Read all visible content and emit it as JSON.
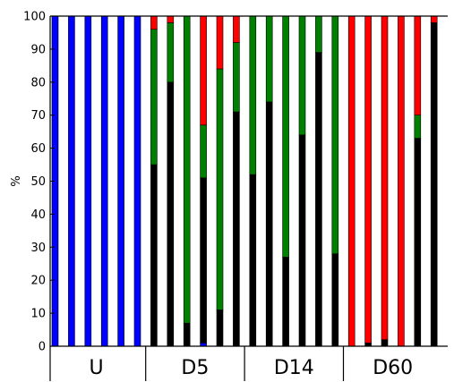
{
  "chart_data": {
    "type": "bar",
    "stacked": true,
    "ylabel": "%",
    "ylim": [
      0,
      100
    ],
    "yticks": [
      0,
      10,
      20,
      30,
      40,
      50,
      60,
      70,
      80,
      90,
      100
    ],
    "grid": false,
    "groups": [
      {
        "label": "U",
        "bar_count": 6
      },
      {
        "label": "D5",
        "bar_count": 6
      },
      {
        "label": "D14",
        "bar_count": 6
      },
      {
        "label": "D60",
        "bar_count": 6
      }
    ],
    "series": [
      {
        "color": "#0000ff",
        "values": [
          100,
          100,
          100,
          100,
          100,
          100,
          0,
          0,
          0,
          1,
          0,
          0,
          0,
          0,
          0,
          0,
          0,
          0,
          0,
          0,
          0,
          0,
          0,
          0
        ]
      },
      {
        "color": "#000000",
        "values": [
          0,
          0,
          0,
          0,
          0,
          0,
          55,
          80,
          7,
          50,
          11,
          71,
          52,
          74,
          27,
          64,
          89,
          28,
          0,
          1,
          2,
          0,
          63,
          98
        ]
      },
      {
        "color": "#008000",
        "values": [
          0,
          0,
          0,
          0,
          0,
          0,
          41,
          18,
          93,
          16,
          73,
          21,
          48,
          26,
          73,
          36,
          11,
          72,
          0,
          0,
          0,
          0,
          7,
          0
        ]
      },
      {
        "color": "#ff0000",
        "values": [
          0,
          0,
          0,
          0,
          0,
          0,
          4,
          2,
          0,
          33,
          16,
          8,
          0,
          0,
          0,
          0,
          0,
          0,
          100,
          99,
          98,
          100,
          30,
          2
        ]
      }
    ]
  }
}
